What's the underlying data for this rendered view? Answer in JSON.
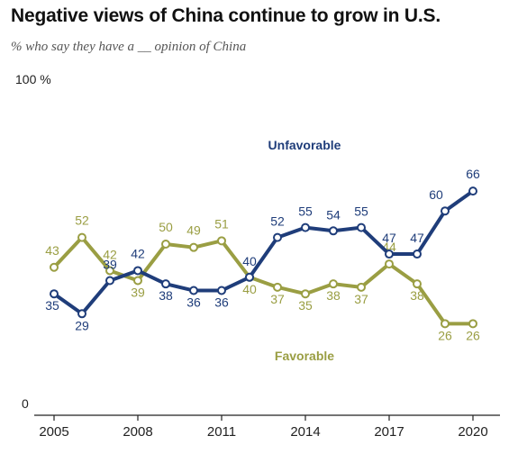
{
  "title": "Negative views of China continue to grow in U.S.",
  "subtitle": "% who say they have a __ opinion of China",
  "colors": {
    "unfavorable": "#1f3d7a",
    "favorable": "#9a9e43",
    "axis": "#222222",
    "text": "#333333"
  },
  "chart_data": {
    "type": "line",
    "x": [
      2005,
      2006,
      2007,
      2008,
      2009,
      2010,
      2011,
      2012,
      2013,
      2014,
      2015,
      2016,
      2017,
      2018,
      2019,
      2020
    ],
    "x_ticks": [
      "2005",
      "2008",
      "2011",
      "2014",
      "2017",
      "2020"
    ],
    "y_top_label": "100 %",
    "y_bottom_label": "0",
    "ylim": [
      0,
      100
    ],
    "series": [
      {
        "name": "Unfavorable",
        "key": "unfavorable",
        "values": [
          35,
          29,
          39,
          42,
          38,
          36,
          36,
          40,
          52,
          55,
          54,
          55,
          47,
          47,
          60,
          66
        ]
      },
      {
        "name": "Favorable",
        "key": "favorable",
        "values": [
          43,
          52,
          42,
          39,
          50,
          49,
          51,
          40,
          37,
          35,
          38,
          37,
          44,
          38,
          26,
          26
        ]
      }
    ]
  }
}
